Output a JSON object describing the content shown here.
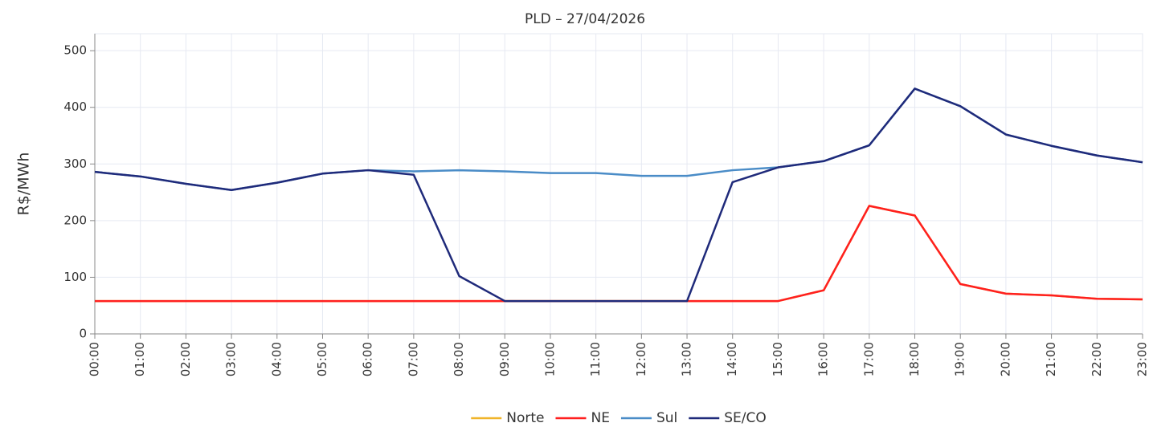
{
  "chart_data": {
    "type": "line",
    "title": "PLD – 27/04/2026",
    "ylabel": "R$/MWh",
    "categories": [
      "00:00",
      "01:00",
      "02:00",
      "03:00",
      "04:00",
      "05:00",
      "06:00",
      "07:00",
      "08:00",
      "09:00",
      "10:00",
      "11:00",
      "12:00",
      "13:00",
      "14:00",
      "15:00",
      "16:00",
      "17:00",
      "18:00",
      "19:00",
      "20:00",
      "21:00",
      "22:00",
      "23:00"
    ],
    "series": [
      {
        "name": "Norte",
        "color": "#f0b429",
        "values": [
          58,
          58,
          58,
          58,
          58,
          58,
          58,
          58,
          58,
          58,
          58,
          58,
          58,
          58,
          58,
          58,
          77,
          226,
          209,
          88,
          71,
          68,
          62,
          61
        ]
      },
      {
        "name": "NE",
        "color": "#ff1f1f",
        "values": [
          58,
          58,
          58,
          58,
          58,
          58,
          58,
          58,
          58,
          58,
          58,
          58,
          58,
          58,
          58,
          58,
          77,
          226,
          209,
          88,
          71,
          68,
          62,
          61
        ]
      },
      {
        "name": "Sul",
        "color": "#4a8cc7",
        "values": [
          286,
          278,
          265,
          254,
          267,
          283,
          289,
          287,
          289,
          287,
          284,
          284,
          279,
          279,
          289,
          294,
          305,
          333,
          433,
          402,
          352,
          332,
          315,
          303
        ]
      },
      {
        "name": "SE/CO",
        "color": "#1f2a7a",
        "values": [
          286,
          278,
          265,
          254,
          267,
          283,
          289,
          281,
          102,
          58,
          58,
          58,
          58,
          58,
          268,
          294,
          305,
          333,
          433,
          402,
          352,
          332,
          315,
          303
        ]
      }
    ],
    "ylim": [
      0,
      530
    ],
    "yticks": [
      0,
      100,
      200,
      300,
      400,
      500
    ],
    "grid": true,
    "legend": "bottom"
  }
}
